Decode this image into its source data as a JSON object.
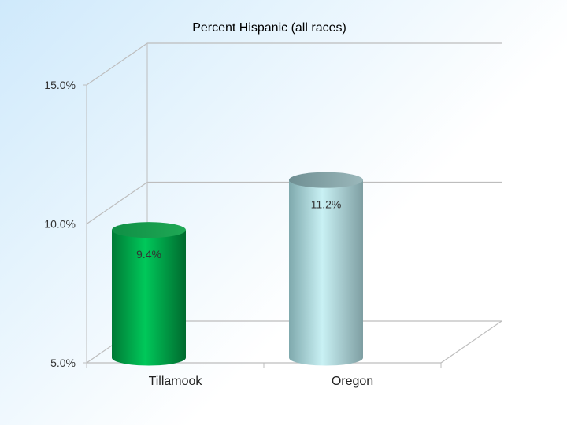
{
  "chart_data": {
    "type": "bar",
    "title": "Percent Hispanic (all races)",
    "categories": [
      "Tillamook",
      "Oregon"
    ],
    "values": [
      9.4,
      11.2
    ],
    "data_labels": [
      "9.4%",
      "11.2%"
    ],
    "y_ticks": [
      5.0,
      10.0,
      15.0
    ],
    "y_tick_labels": [
      "5.0%",
      "10.0%",
      "15.0%"
    ],
    "ylim": [
      5.0,
      15.0
    ],
    "grid": true,
    "legend": "none",
    "style": "3d-cylinder",
    "colors": [
      "#00b050",
      "#b9e6ea"
    ]
  }
}
